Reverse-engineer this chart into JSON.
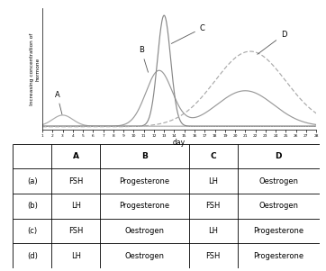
{
  "ylabel": "Increasing concentration of\nhormone",
  "xlabel": "day",
  "label_A": "A",
  "label_B": "B",
  "label_C": "C",
  "label_D": "D",
  "table_headers": [
    "",
    "A",
    "B",
    "C",
    "D"
  ],
  "table_rows": [
    [
      "(a)",
      "FSH",
      "Progesterone",
      "LH",
      "Oestrogen"
    ],
    [
      "(b)",
      "LH",
      "Progesterone",
      "FSH",
      "Oestrogen"
    ],
    [
      "(c)",
      "FSH",
      "Oestrogen",
      "LH",
      "Progesterone"
    ],
    [
      "(d)",
      "LH",
      "Oestrogen",
      "FSH",
      "Progesterone"
    ]
  ],
  "curve_A_color": "#aaaaaa",
  "curve_B_color": "#999999",
  "curve_C_color": "#888888",
  "curve_D_color": "#aaaaaa",
  "dot_line_color": "#cccccc",
  "annotation_color": "#555555"
}
